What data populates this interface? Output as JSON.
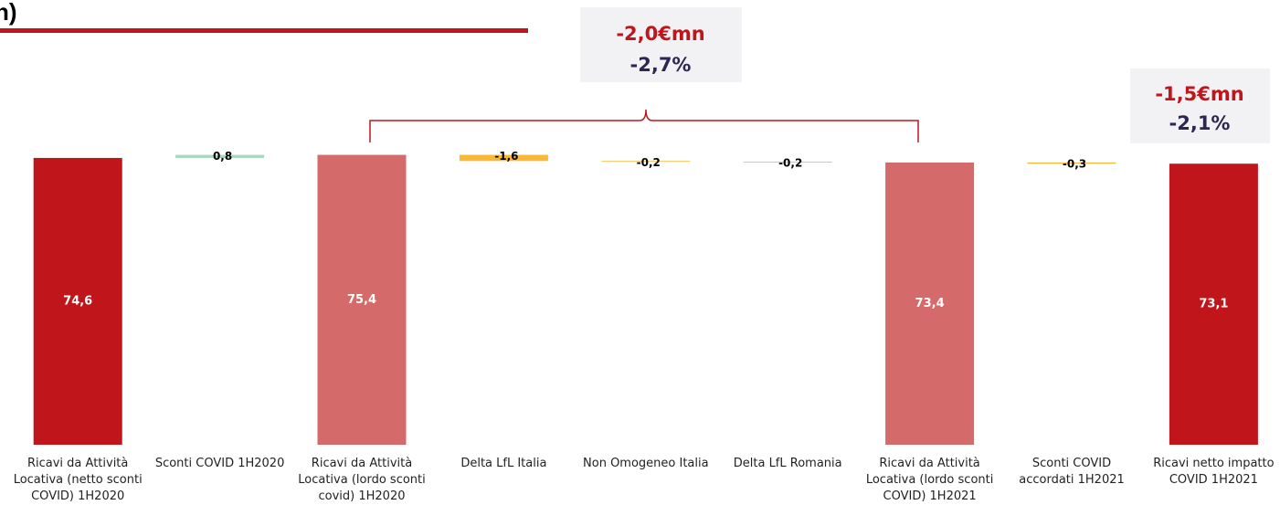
{
  "chart_data": {
    "type": "waterfall",
    "title": "n)",
    "categories": [
      "Ricavi da Attività Locativa (netto sconti COVID) 1H2020",
      "Sconti COVID 1H2020",
      "Ricavi da Attività Locativa (lordo sconti covid) 1H2020",
      "Delta LfL Italia",
      "Non Omogeneo Italia",
      "Delta LfL Romania",
      "Ricavi da Attività Locativa (lordo sconti COVID) 1H2021",
      "Sconti COVID accordati 1H2021",
      "Ricavi netto impatto COVID 1H2021"
    ],
    "values": [
      74.6,
      0.8,
      75.4,
      -1.6,
      -0.2,
      -0.2,
      73.4,
      -0.3,
      73.1
    ],
    "value_labels": [
      "74,6",
      "0,8",
      "75,4",
      "-1,6",
      "-0,2",
      "-0,2",
      "73,4",
      "-0,3",
      "73,1"
    ],
    "measure": [
      "absolute",
      "relative",
      "absolute",
      "relative",
      "relative",
      "relative",
      "absolute",
      "relative",
      "absolute"
    ],
    "colors": [
      "#c0161b",
      "#a8d8c0",
      "#d46a6a",
      "#f9b934",
      "#f9b934",
      "#f9b934",
      "#d46a6a",
      "#f9b934",
      "#c0161b"
    ],
    "annotations": [
      {
        "amount": "-2,0€mn",
        "percent": "-2,7%"
      },
      {
        "amount": "-1,5€mn",
        "percent": "-2,1%"
      }
    ]
  }
}
